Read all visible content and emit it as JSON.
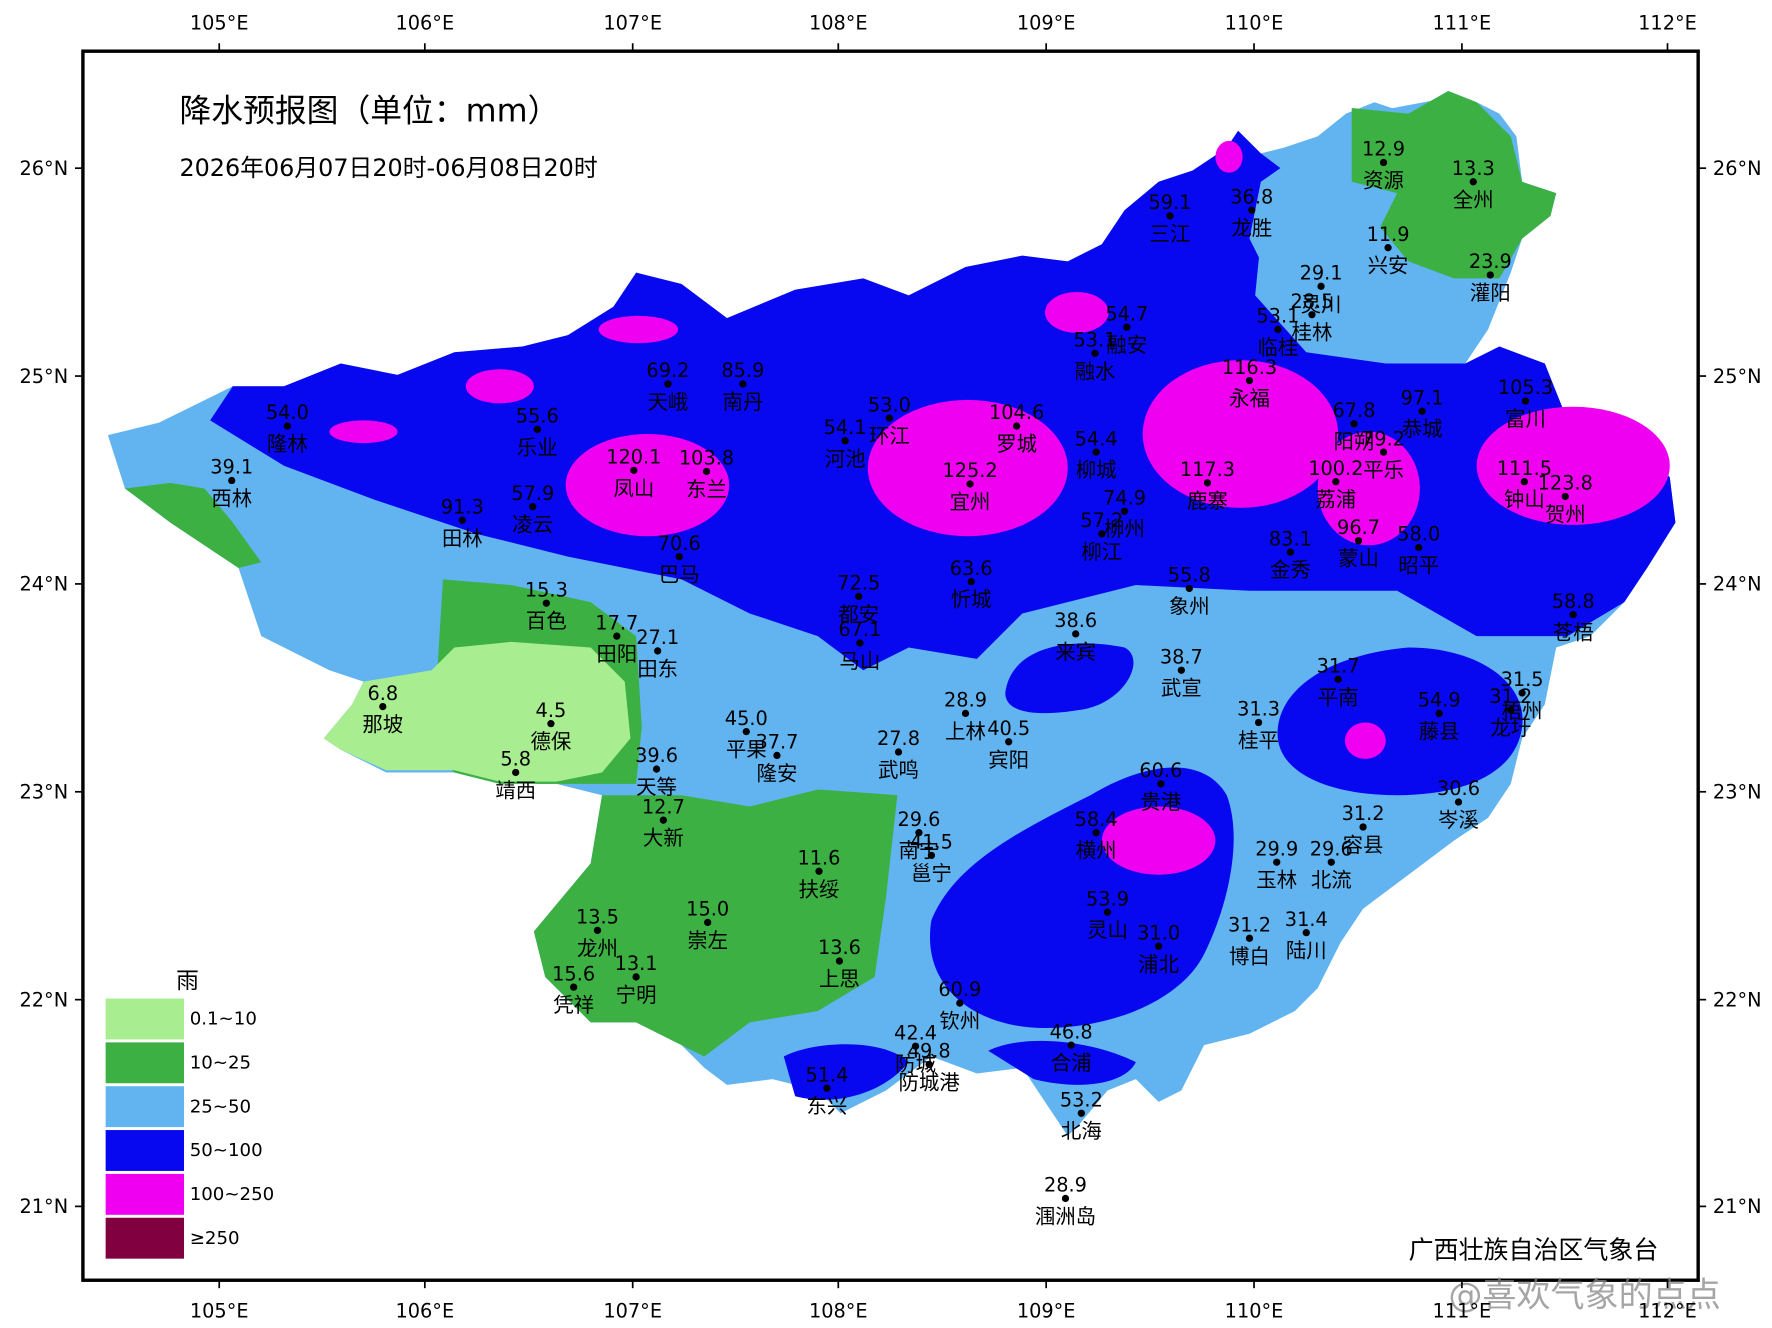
{
  "title": "降水预报图（单位：mm）",
  "subtitle": "2026年06月07日20时-06月08日20时",
  "longitude_labels": [
    "105°E",
    "106°E",
    "107°E",
    "108°E",
    "109°E",
    "110°E",
    "111°E",
    "112°E"
  ],
  "latitude_labels": [
    "26°N",
    "25°N",
    "24°N",
    "23°N",
    "22°N",
    "21°N"
  ],
  "stations": [
    {
      "value": "59.1",
      "name": "三江"
    },
    {
      "value": "36.8",
      "name": "龙胜"
    },
    {
      "value": "12.9",
      "name": "资源"
    },
    {
      "value": "13.3",
      "name": "全州"
    },
    {
      "value": "11.9",
      "name": "兴安"
    },
    {
      "value": "23.9",
      "name": "灌阳"
    },
    {
      "value": "29.1",
      "name": "灵川"
    },
    {
      "value": "28.5",
      "name": "桂林"
    },
    {
      "value": "53.1",
      "name": "临桂"
    },
    {
      "value": "54.7",
      "name": "融安"
    },
    {
      "value": "53.1",
      "name": "融水"
    },
    {
      "value": "116.3",
      "name": "永福"
    },
    {
      "value": "69.2",
      "name": "天峨"
    },
    {
      "value": "85.9",
      "name": "南丹"
    },
    {
      "value": "53.0",
      "name": "环江"
    },
    {
      "value": "54.1",
      "name": "河池"
    },
    {
      "value": "104.6",
      "name": "罗城"
    },
    {
      "value": "54.4",
      "name": "柳城"
    },
    {
      "value": "117.3",
      "name": "鹿寨"
    },
    {
      "value": "67.8",
      "name": "阳朔"
    },
    {
      "value": "97.1",
      "name": "恭城"
    },
    {
      "value": "79.2",
      "name": "平乐"
    },
    {
      "value": "105.3",
      "name": "富川"
    },
    {
      "value": "111.5",
      "name": "钟山"
    },
    {
      "value": "123.8",
      "name": "贺州"
    },
    {
      "value": "100.2",
      "name": "荔浦"
    },
    {
      "value": "54.0",
      "name": "隆林"
    },
    {
      "value": "39.1",
      "name": "西林"
    },
    {
      "value": "55.6",
      "name": "乐业"
    },
    {
      "value": "120.1",
      "name": "凤山"
    },
    {
      "value": "103.8",
      "name": "东兰"
    },
    {
      "value": "57.9",
      "name": "凌云"
    },
    {
      "value": "91.3",
      "name": "田林"
    },
    {
      "value": "125.2",
      "name": "宜州"
    },
    {
      "value": "74.9",
      "name": "柳州"
    },
    {
      "value": "57.2",
      "name": "柳江"
    },
    {
      "value": "83.1",
      "name": "金秀"
    },
    {
      "value": "96.7",
      "name": "蒙山"
    },
    {
      "value": "58.0",
      "name": "昭平"
    },
    {
      "value": "70.6",
      "name": "巴马"
    },
    {
      "value": "63.6",
      "name": "忻城"
    },
    {
      "value": "55.8",
      "name": "象州"
    },
    {
      "value": "58.8",
      "name": "苍梧"
    },
    {
      "value": "72.5",
      "name": "都安"
    },
    {
      "value": "67.1",
      "name": "马山"
    },
    {
      "value": "15.3",
      "name": "百色"
    },
    {
      "value": "17.7",
      "name": "田阳"
    },
    {
      "value": "27.1",
      "name": "田东"
    },
    {
      "value": "38.6",
      "name": "来宾"
    },
    {
      "value": "38.7",
      "name": "武宣"
    },
    {
      "value": "31.7",
      "name": "平南"
    },
    {
      "value": "54.9",
      "name": "藤县"
    },
    {
      "value": "31.5",
      "name": "梧州"
    },
    {
      "value": "31.2",
      "name": "龙圩"
    },
    {
      "value": "6.8",
      "name": "那坡"
    },
    {
      "value": "4.5",
      "name": "德保"
    },
    {
      "value": "28.9",
      "name": "上林"
    },
    {
      "value": "31.3",
      "name": "桂平"
    },
    {
      "value": "45.0",
      "name": "平果"
    },
    {
      "value": "37.7",
      "name": "隆安"
    },
    {
      "value": "40.5",
      "name": "宾阳"
    },
    {
      "value": "27.8",
      "name": "武鸣"
    },
    {
      "value": "39.6",
      "name": "天等"
    },
    {
      "value": "5.8",
      "name": "靖西"
    },
    {
      "value": "60.6",
      "name": "贵港"
    },
    {
      "value": "30.6",
      "name": "岑溪"
    },
    {
      "value": "12.7",
      "name": "大新"
    },
    {
      "value": "29.6",
      "name": "南宁"
    },
    {
      "value": "41.5",
      "name": "邕宁"
    },
    {
      "value": "58.4",
      "name": "横州"
    },
    {
      "value": "31.2",
      "name": "容县"
    },
    {
      "value": "11.6",
      "name": "扶绥"
    },
    {
      "value": "29.9",
      "name": "玉林"
    },
    {
      "value": "29.6",
      "name": "北流"
    },
    {
      "value": "53.9",
      "name": "灵山"
    },
    {
      "value": "31.0",
      "name": "浦北"
    },
    {
      "value": "31.2",
      "name": "博白"
    },
    {
      "value": "31.4",
      "name": "陆川"
    },
    {
      "value": "13.5",
      "name": "龙州"
    },
    {
      "value": "15.0",
      "name": "崇左"
    },
    {
      "value": "13.6",
      "name": "上思"
    },
    {
      "value": "15.6",
      "name": "凭祥"
    },
    {
      "value": "13.1",
      "name": "宁明"
    },
    {
      "value": "60.9",
      "name": "钦州"
    },
    {
      "value": "42.4",
      "name": "防城"
    },
    {
      "value": "49.8",
      "name": "防城港"
    },
    {
      "value": "51.4",
      "name": "东兴"
    },
    {
      "value": "46.8",
      "name": "合浦"
    },
    {
      "value": "53.2",
      "name": "北海"
    },
    {
      "value": "28.9",
      "name": "涠洲岛"
    }
  ],
  "legend": {
    "title": "雨",
    "entries": [
      {
        "label": "0.1~10",
        "color": "#a8ee90"
      },
      {
        "label": "10~25",
        "color": "#3cb043"
      },
      {
        "label": "25~50",
        "color": "#62b4f0"
      },
      {
        "label": "50~100",
        "color": "#0808f0"
      },
      {
        "label": "100~250",
        "color": "#f000f0"
      },
      {
        "label": "≥250",
        "color": "#800040"
      }
    ]
  },
  "credit": "广西壮族自治区气象台",
  "watermark": "@喜欢气象的点点"
}
